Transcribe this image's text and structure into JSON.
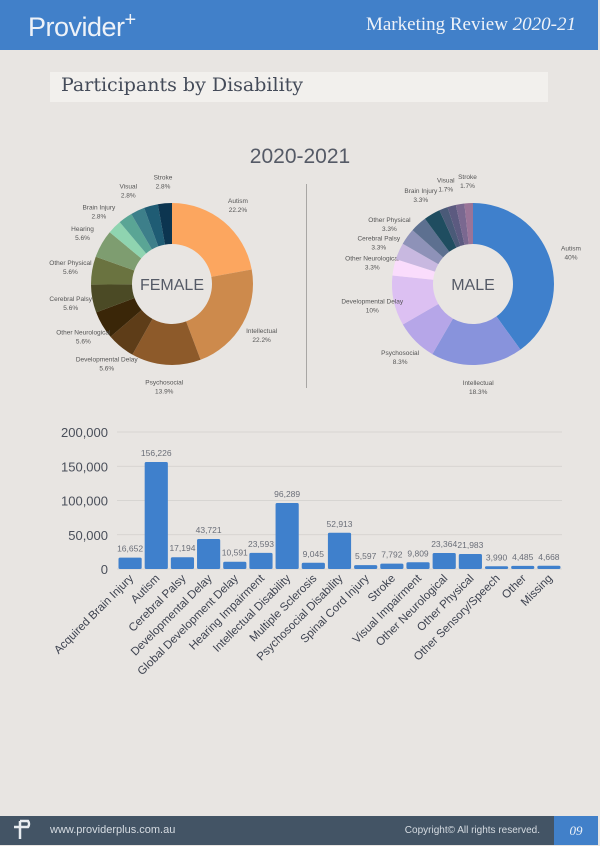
{
  "header": {
    "brand": "Provider",
    "brand_mark": "+",
    "review": "Marketing Review",
    "review_year": "2020-21"
  },
  "page_title": "Participants by Disability",
  "period": "2020-2021",
  "footer": {
    "url": "www.providerplus.com.au",
    "copyright": "Copyright© All rights reserved.",
    "page": "09"
  },
  "chart_data": [
    {
      "type": "pie",
      "donut": true,
      "center_label": "FEMALE",
      "slices": [
        {
          "label": "Autism",
          "pct_label": "22.2%",
          "value": 22.2,
          "color": "#fca65f"
        },
        {
          "label": "Intellectual",
          "pct_label": "22.2%",
          "value": 22.2,
          "color": "#cd8a4c"
        },
        {
          "label": "Psychosocial",
          "pct_label": "13.9%",
          "value": 13.9,
          "color": "#8d5a2a"
        },
        {
          "label": "Developmental Delay",
          "pct_label": "5.6%",
          "value": 5.6,
          "color": "#5e3d18"
        },
        {
          "label": "Other Neurological",
          "pct_label": "5.6%",
          "value": 5.6,
          "color": "#3a2608"
        },
        {
          "label": "Cerebral Palsy",
          "pct_label": "5.6%",
          "value": 5.6,
          "color": "#4b4a25"
        },
        {
          "label": "Other Physical",
          "pct_label": "5.6%",
          "value": 5.6,
          "color": "#6a7340"
        },
        {
          "label": "Hearing",
          "pct_label": "5.6%",
          "value": 5.6,
          "color": "#7e9d70"
        },
        {
          "label": "Brain Injury",
          "pct_label": "2.8%",
          "value": 2.8,
          "color": "#8fd4b0"
        },
        {
          "label": "",
          "pct_label": "",
          "value": 2.8,
          "color": "#5aa595"
        },
        {
          "label": "Visual",
          "pct_label": "2.8%",
          "value": 2.8,
          "color": "#3d7f8a"
        },
        {
          "label": "",
          "pct_label": "",
          "value": 2.8,
          "color": "#1f5c74"
        },
        {
          "label": "Stroke",
          "pct_label": "2.8%",
          "value": 2.8,
          "color": "#0c3550"
        }
      ]
    },
    {
      "type": "pie",
      "donut": true,
      "center_label": "MALE",
      "slices": [
        {
          "label": "Autism",
          "pct_label": "40%",
          "value": 40,
          "color": "#3f80cc"
        },
        {
          "label": "Intellectual",
          "pct_label": "18.3%",
          "value": 18.3,
          "color": "#8893dc"
        },
        {
          "label": "Psychosocial",
          "pct_label": "8.3%",
          "value": 8.3,
          "color": "#b6a6e8"
        },
        {
          "label": "Developmental Delay",
          "pct_label": "10%",
          "value": 10,
          "color": "#dcc0f2"
        },
        {
          "label": "Other Neurological",
          "pct_label": "3.3%",
          "value": 3.3,
          "color": "#fadcfc"
        },
        {
          "label": "Cerebral Palsy",
          "pct_label": "3.3%",
          "value": 3.3,
          "color": "#c8b8e0"
        },
        {
          "label": "Other Physical",
          "pct_label": "3.3%",
          "value": 3.3,
          "color": "#8e92b8"
        },
        {
          "label": "",
          "pct_label": "",
          "value": 3.3,
          "color": "#5d7090"
        },
        {
          "label": "Brain Injury",
          "pct_label": "3.3%",
          "value": 3.3,
          "color": "#1f4d60"
        },
        {
          "label": "",
          "pct_label": "",
          "value": 1.7,
          "color": "#4a5a78"
        },
        {
          "label": "Visual",
          "pct_label": "1.7%",
          "value": 1.7,
          "color": "#5c5a80"
        },
        {
          "label": "",
          "pct_label": "",
          "value": 1.7,
          "color": "#7a6890"
        },
        {
          "label": "Stroke",
          "pct_label": "1.7%",
          "value": 1.7,
          "color": "#9a7498"
        }
      ]
    },
    {
      "type": "bar",
      "color": "#3f80cc",
      "ylim": [
        0,
        200000
      ],
      "yticks": [
        "0",
        "50,000",
        "100,000",
        "150,000",
        "200,000"
      ],
      "grid": true,
      "categories": [
        "Acquired Brain Injury",
        "Autism",
        "Cerebral Palsy",
        "Developmental Delay",
        "Global Development Delay",
        "Hearing Impairment",
        "Intellectual Disability",
        "Multiple Sclerosis",
        "Psychosocial Disability",
        "Spinal Cord Injury",
        "Stroke",
        "Visual Impairment",
        "Other Neurological",
        "Other Physical",
        "Other Sensory/Speech",
        "Other",
        "Missing"
      ],
      "values": [
        16652,
        156226,
        17194,
        43721,
        10591,
        23593,
        96289,
        9045,
        52913,
        5597,
        7792,
        9809,
        23364,
        21983,
        3990,
        4485,
        4668
      ],
      "value_labels": [
        "16,652",
        "156,226",
        "17,194",
        "43,721",
        "10,591",
        "23,593",
        "96,289",
        "9,045",
        "52,913",
        "5,597",
        "7,792",
        "9,809",
        "23,364",
        "21,983",
        "3,990",
        "4,485",
        "4,668"
      ]
    }
  ]
}
